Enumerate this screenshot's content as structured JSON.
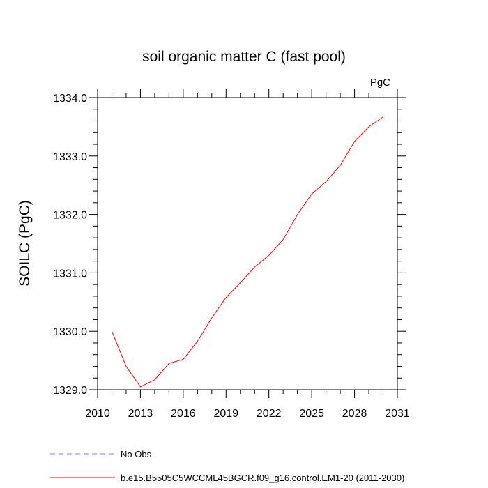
{
  "chart_data": {
    "type": "line",
    "title": "soil organic matter C (fast pool)",
    "units_label": "PgC",
    "ylabel": "SOILC  (PgC)",
    "xlabel": "",
    "xlim": [
      2010,
      2031
    ],
    "ylim": [
      1329.0,
      1334.0
    ],
    "x_ticks": [
      2010,
      2013,
      2016,
      2019,
      2022,
      2025,
      2028,
      2031
    ],
    "y_ticks": [
      1329.0,
      1330.0,
      1331.0,
      1332.0,
      1333.0,
      1334.0
    ],
    "y_tick_labels": [
      "1329.0",
      "1330.0",
      "1331.0",
      "1332.0",
      "1333.0",
      "1334.0"
    ],
    "grid": false,
    "legend_position": "bottom-left, below plot",
    "series": [
      {
        "name": "b.e15.B5505C5WCCML45BGCR.f09_g16.control.EM1-20 (2011-2030)",
        "color": "#ff0000",
        "style": "solid",
        "x": [
          2011,
          2012,
          2013,
          2014,
          2015,
          2016,
          2017,
          2018,
          2019,
          2020,
          2021,
          2022,
          2023,
          2024,
          2025,
          2026,
          2027,
          2028,
          2029,
          2030
        ],
        "y": [
          1330.0,
          1329.4,
          1329.05,
          1329.17,
          1329.45,
          1329.52,
          1329.83,
          1330.23,
          1330.58,
          1330.83,
          1331.1,
          1331.3,
          1331.57,
          1332.0,
          1332.35,
          1332.56,
          1332.84,
          1333.25,
          1333.5,
          1333.67
        ]
      }
    ],
    "legend": [
      {
        "label": "No Obs",
        "color": "#8080ff",
        "style": "dashed"
      },
      {
        "label": "b.e15.B5505C5WCCML45BGCR.f09_g16.control.EM1-20 (2011-2030)",
        "color": "#ff0000",
        "style": "solid"
      }
    ]
  }
}
